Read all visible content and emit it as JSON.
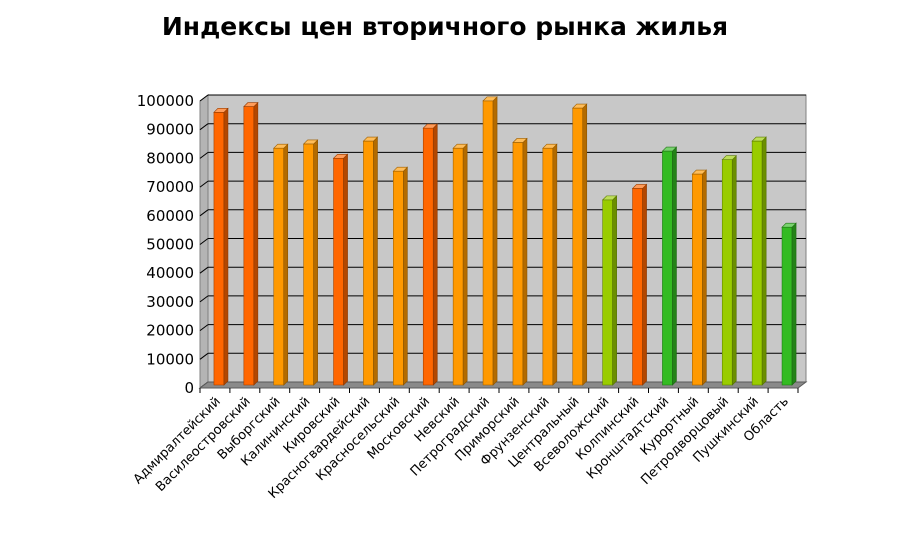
{
  "chart_data": {
    "type": "bar",
    "title": "Индексы цен вторичного рынка жилья",
    "xlabel": "",
    "ylabel": "",
    "ylim": [
      0,
      100000
    ],
    "yticks": [
      0,
      10000,
      20000,
      30000,
      40000,
      50000,
      60000,
      70000,
      80000,
      90000,
      100000
    ],
    "grid": true,
    "legend": "none",
    "categories": [
      "Адмиралтейский",
      "Василеостровский",
      "Выборгский",
      "Калининский",
      "Кировский",
      "Красногвардейский",
      "Красносельский",
      "Московский",
      "Невский",
      "Петроградский",
      "Приморский",
      "Фрунзенский",
      "Центральный",
      "Всеволожский",
      "Колпинский",
      "Кронштадтский",
      "Курортный",
      "Петродворцовый",
      "Пушкинский",
      "Область"
    ],
    "values": [
      95000,
      97000,
      82500,
      84000,
      79000,
      85000,
      74500,
      89500,
      82500,
      99000,
      84500,
      82500,
      96500,
      64500,
      68500,
      81500,
      73500,
      78500,
      85000,
      55000
    ],
    "colors": [
      "#ff6600",
      "#ff6600",
      "#ff9900",
      "#ff9900",
      "#ff6600",
      "#ff9900",
      "#ff9900",
      "#ff6600",
      "#ff9900",
      "#ff9900",
      "#ff9900",
      "#ff9900",
      "#ff9900",
      "#99cc00",
      "#ff6600",
      "#33bb22",
      "#ff9900",
      "#99cc00",
      "#99cc00",
      "#33bb22"
    ]
  }
}
